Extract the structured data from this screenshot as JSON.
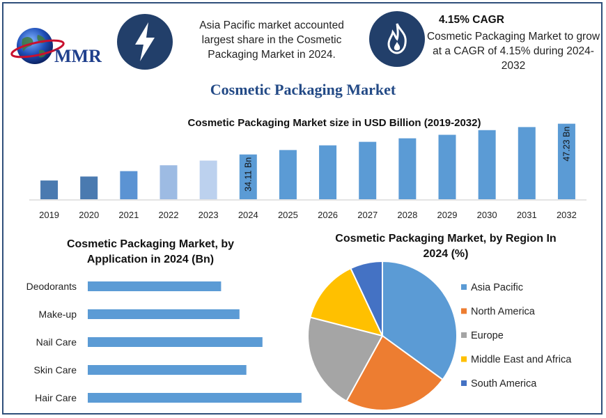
{
  "brand": {
    "logo_text": "MMR"
  },
  "highlights": {
    "share_text": "Asia Pacific market accounted largest share in the Cosmetic Packaging Market in 2024.",
    "cagr_title": "4.15% CAGR",
    "cagr_text": "Cosmetic Packaging Market to grow at a CAGR of 4.15% during 2024-2032"
  },
  "icons": {
    "share": "lightning-bolt-icon",
    "cagr": "flame-icon"
  },
  "title": "Cosmetic Packaging Market",
  "chart_data": [
    {
      "type": "bar",
      "title": "Cosmetic Packaging Market size in USD Billion (2019-2032)",
      "categories": [
        "2019",
        "2020",
        "2021",
        "2022",
        "2023",
        "2024",
        "2025",
        "2026",
        "2027",
        "2028",
        "2029",
        "2030",
        "2031",
        "2032"
      ],
      "values": [
        23.0,
        24.7,
        27.0,
        29.5,
        31.5,
        34.11,
        36.0,
        38.0,
        39.5,
        41.0,
        42.5,
        44.5,
        45.8,
        47.23
      ],
      "data_labels": {
        "2024": "34.11 Bn",
        "2032": "47.23 Bn"
      },
      "colors": [
        "#4a7ab0",
        "#4a7ab0",
        "#5b93d3",
        "#9dbbe3",
        "#bcd1ee",
        "#5b9bd5",
        "#5b9bd5",
        "#5b9bd5",
        "#5b9bd5",
        "#5b9bd5",
        "#5b9bd5",
        "#5b9bd5",
        "#5b9bd5",
        "#5b9bd5"
      ],
      "ylim": [
        15,
        48
      ]
    },
    {
      "type": "bar",
      "orientation": "horizontal",
      "title": "Cosmetic Packaging Market, by Application in 2024 (Bn)",
      "categories": [
        "Deodorants",
        "Make-up",
        "Nail Care",
        "Skin Care",
        "Hair Care"
      ],
      "values": [
        5.8,
        6.6,
        7.6,
        6.9,
        9.3
      ],
      "xlim": [
        0,
        10
      ],
      "color": "#5b9bd5"
    },
    {
      "type": "pie",
      "title": "Cosmetic Packaging Market, by Region In 2024 (%)",
      "labels": [
        "Asia Pacific",
        "North America",
        "Europe",
        "Middle East and Africa",
        "South America"
      ],
      "values": [
        35,
        23,
        21,
        14,
        7
      ],
      "colors": [
        "#5b9bd5",
        "#ed7d31",
        "#a5a5a5",
        "#ffc000",
        "#4472c4"
      ],
      "legend": "right"
    }
  ]
}
